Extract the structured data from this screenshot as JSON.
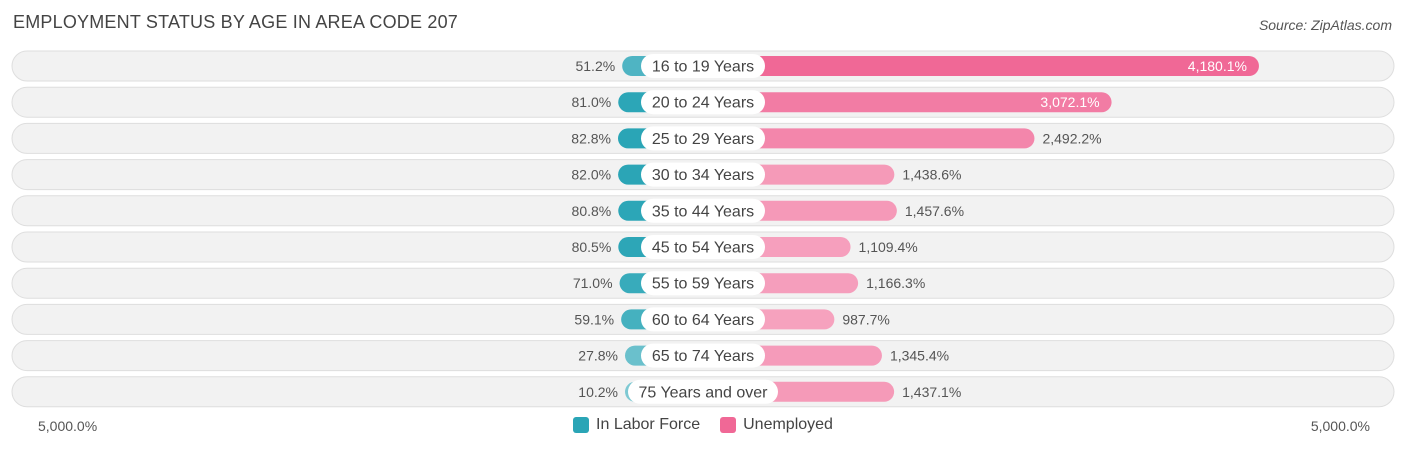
{
  "title": "EMPLOYMENT STATUS BY AGE IN AREA CODE 207",
  "source": "Source: ZipAtlas.com",
  "colors": {
    "labor_force": "#2aa5b6",
    "unemployed": "#f06896",
    "row_bg": "#f2f2f2",
    "row_border": "#dedede"
  },
  "chart_data": {
    "type": "bar",
    "categories": [
      "16 to 19 Years",
      "20 to 24 Years",
      "25 to 29 Years",
      "30 to 34 Years",
      "35 to 44 Years",
      "45 to 54 Years",
      "55 to 59 Years",
      "60 to 64 Years",
      "65 to 74 Years",
      "75 Years and over"
    ],
    "series": [
      {
        "name": "In Labor Force",
        "values": [
          51.2,
          81.0,
          82.8,
          82.0,
          80.8,
          80.5,
          71.0,
          59.1,
          27.8,
          10.2
        ],
        "labels": [
          "51.2%",
          "81.0%",
          "82.8%",
          "82.0%",
          "80.8%",
          "80.5%",
          "71.0%",
          "59.1%",
          "27.8%",
          "10.2%"
        ]
      },
      {
        "name": "Unemployed",
        "values": [
          4180.1,
          3072.1,
          2492.2,
          1438.6,
          1457.6,
          1109.4,
          1166.3,
          987.7,
          1345.4,
          1437.1
        ],
        "labels": [
          "4,180.1%",
          "3,072.1%",
          "2,492.2%",
          "1,438.6%",
          "1,457.6%",
          "1,109.4%",
          "1,166.3%",
          "987.7%",
          "1,345.4%",
          "1,437.1%"
        ]
      }
    ],
    "axis_max": 5000,
    "axis_left_label": "5,000.0%",
    "axis_right_label": "5,000.0%",
    "legend_position": "bottom-center"
  }
}
